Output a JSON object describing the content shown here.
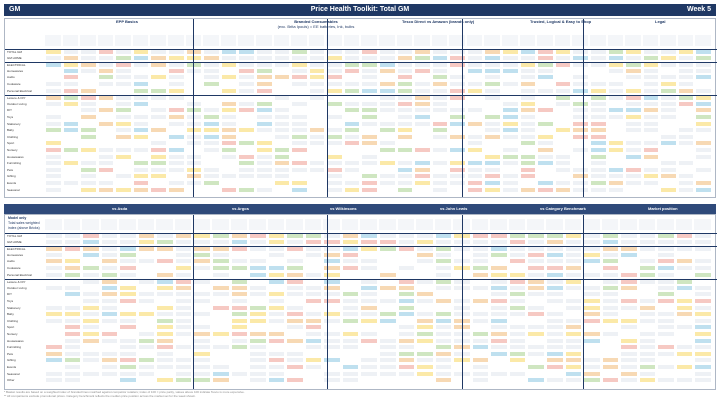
{
  "top_bar": {
    "left": "GM",
    "title": "Price Health Toolkit: Total GM",
    "right": "Week 5"
  },
  "top_sections": [
    {
      "label": "EPP Basics",
      "col": 0
    },
    {
      "label": "Branded Consumables",
      "sub": "(exc. Brita Ipouls) = EE batteries, Ink, bulbs",
      "col": 1
    },
    {
      "label": "Tesco Direct vs Amazon (brands only)",
      "col": 2
    },
    {
      "label": "Trusted, Logical & Easy to Shop",
      "col": 3
    },
    {
      "label": "Legal",
      "col": 4
    }
  ],
  "bottom_sections": [
    {
      "label": "vs Asda",
      "col": 0
    },
    {
      "label": "vs Argos",
      "col": 1
    },
    {
      "label": "vs Wilkinsons",
      "col": 2
    },
    {
      "label": "vs John Lewis",
      "col": 3
    },
    {
      "label": "vs Category Benchmark",
      "col": 4
    },
    {
      "label": "Market position",
      "col": 5
    }
  ],
  "bottom_left_header": {
    "line1": "Model only",
    "line2": "Total sales weighted index (above Bricks)"
  },
  "row_labels_top": [
    "TOTAL GM",
    "GM HOME",
    "ELECTRICAL",
    "Homewares",
    "Audio",
    "Cookware",
    "Personal Electrical",
    "Leisure & DIY",
    "Outdoor Living",
    "DIY",
    "Toys",
    "Stationery",
    "Baby",
    "Clothing",
    "Sport",
    "Nursery",
    "Housewares",
    "Furnishing",
    "Pets",
    "Gifting",
    "Events",
    "Seasonal"
  ],
  "row_labels_bottom": [
    "TOTAL GM",
    "GM HOME",
    "ELECTRICAL",
    "Homewares",
    "Audio",
    "Cookware",
    "Personal Electrical",
    "Leisure & DIY",
    "Outdoor Living",
    "DIY",
    "Toys",
    "Stationery",
    "Baby",
    "Clothing",
    "Sport",
    "Nursery",
    "Housewares",
    "Furnishing",
    "Pets",
    "Gifting",
    "Events",
    "Seasonal",
    "Other"
  ],
  "footnotes": [
    "* Basket results are based on a weighted index of branded lines matched against competitor retailers; index of 100 = price parity, values above 100 indicate Tesco is more expensive.",
    "** All comparisons exclude promotional prices. Category benchmark reflects the median price position across the market set for the week shown."
  ]
}
